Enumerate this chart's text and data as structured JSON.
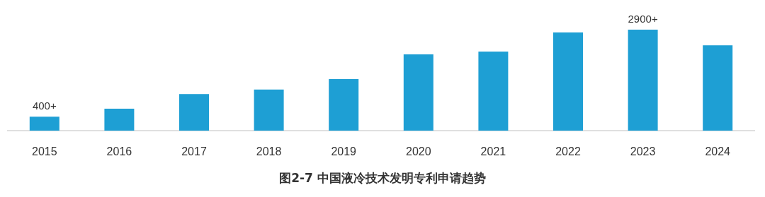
{
  "chart_data": {
    "type": "bar",
    "title": "图2-7 中国液冷技术发明专利申请趋势",
    "categories": [
      "2015",
      "2016",
      "2017",
      "2018",
      "2019",
      "2020",
      "2021",
      "2022",
      "2023",
      "2024"
    ],
    "values": [
      400,
      630,
      1050,
      1180,
      1480,
      2190,
      2270,
      2820,
      2900,
      2450
    ],
    "value_labels": [
      "400+",
      null,
      null,
      null,
      null,
      null,
      null,
      null,
      "2900+",
      null
    ],
    "color": "#1e9fd4"
  }
}
